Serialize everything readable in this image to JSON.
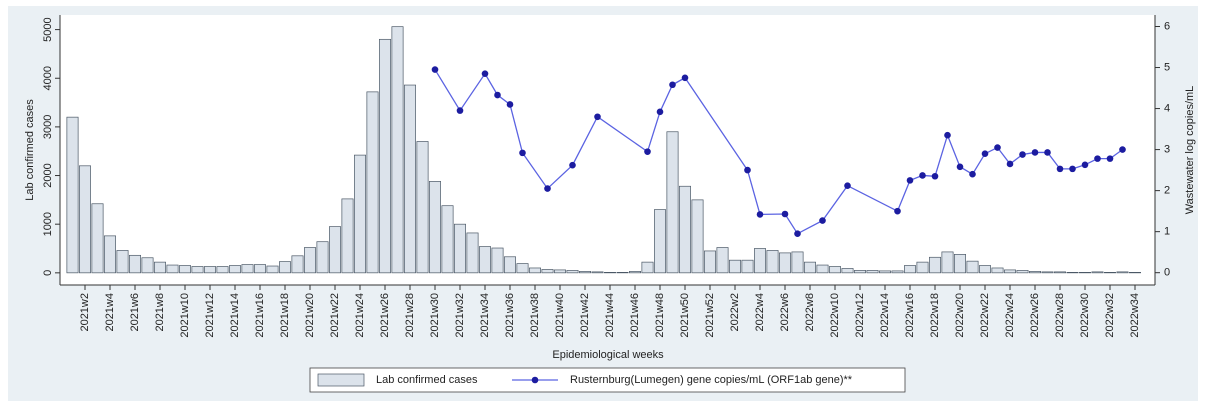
{
  "chart_data": {
    "type": "bar-line",
    "x_label": "Epidemiological weeks",
    "y_label": "Lab confirmed cases",
    "y2_label": "Wastewater log copies/mL",
    "categories": [
      null,
      "2021w2",
      null,
      "2021w4",
      null,
      "2021w6",
      null,
      "2021w8",
      null,
      "2021w10",
      null,
      "2021w12",
      null,
      "2021w14",
      null,
      "2021w16",
      null,
      "2021w18",
      null,
      "2021w20",
      null,
      "2021w22",
      null,
      "2021w24",
      null,
      "2021w26",
      null,
      "2021w28",
      null,
      "2021w30",
      null,
      "2021w32",
      null,
      "2021w34",
      null,
      "2021w36",
      null,
      "2021w38",
      null,
      "2021w40",
      null,
      "2021w42",
      null,
      "2021w44",
      null,
      "2021w46",
      null,
      "2021w48",
      null,
      "2021w50",
      null,
      "2021w52",
      null,
      "2022w2",
      null,
      "2022w4",
      null,
      "2022w6",
      null,
      "2022w8",
      null,
      "2022w10",
      null,
      "2022w12",
      null,
      "2022w14",
      null,
      "2022w16",
      null,
      "2022w18",
      null,
      "2022w20",
      null,
      "2022w22",
      null,
      "2022w24",
      null,
      "2022w26",
      null,
      "2022w28",
      null,
      "2022w30",
      null,
      "2022w32",
      null,
      "2022w34"
    ],
    "series": [
      {
        "name": "Lab confirmed cases",
        "type": "bar",
        "color": "#dce3eb",
        "edge_color": "#4b5866",
        "values": [
          3200,
          2200,
          1420,
          760,
          460,
          360,
          310,
          220,
          160,
          150,
          130,
          130,
          130,
          150,
          170,
          170,
          140,
          230,
          350,
          520,
          640,
          950,
          1520,
          2420,
          3720,
          4800,
          5060,
          3860,
          2700,
          1880,
          1380,
          1000,
          820,
          540,
          510,
          330,
          190,
          100,
          70,
          60,
          50,
          30,
          20,
          10,
          10,
          30,
          220,
          1300,
          2900,
          1780,
          1500,
          450,
          520,
          260,
          260,
          500,
          460,
          410,
          430,
          220,
          160,
          130,
          90,
          50,
          50,
          40,
          40,
          150,
          220,
          320,
          430,
          380,
          240,
          150,
          100,
          60,
          50,
          30,
          20,
          20,
          10,
          10,
          20,
          10,
          20,
          10
        ]
      },
      {
        "name": "Rusternburg(Lumegen) gene copies/mL (ORF1ab gene)**",
        "type": "line",
        "axis": "y2",
        "color": "#5b63e2",
        "marker_color": "#1c1ca0",
        "connect_gaps": true,
        "values": [
          null,
          null,
          null,
          null,
          null,
          null,
          null,
          null,
          null,
          null,
          null,
          null,
          null,
          null,
          null,
          null,
          null,
          null,
          null,
          null,
          null,
          null,
          null,
          null,
          null,
          null,
          null,
          null,
          null,
          4.95,
          null,
          3.95,
          null,
          4.85,
          4.33,
          4.1,
          2.92,
          null,
          2.05,
          null,
          2.62,
          null,
          3.8,
          null,
          null,
          null,
          2.95,
          3.92,
          4.58,
          4.75,
          null,
          null,
          null,
          null,
          2.5,
          1.42,
          null,
          1.43,
          0.95,
          null,
          1.27,
          null,
          2.12,
          null,
          null,
          null,
          1.5,
          2.25,
          2.37,
          2.35,
          3.35,
          2.58,
          2.4,
          2.9,
          3.05,
          2.65,
          2.88,
          2.93,
          2.93,
          2.53,
          2.53,
          2.63,
          2.78,
          2.78,
          3.0,
          null
        ]
      }
    ],
    "ylim": [
      -250,
      5300
    ],
    "yticks": [
      0,
      1000,
      2000,
      3000,
      4000,
      5000
    ],
    "y2lim": [
      -0.3,
      6.28
    ],
    "y2ticks": [
      0,
      1,
      2,
      3,
      4,
      5,
      6
    ]
  }
}
